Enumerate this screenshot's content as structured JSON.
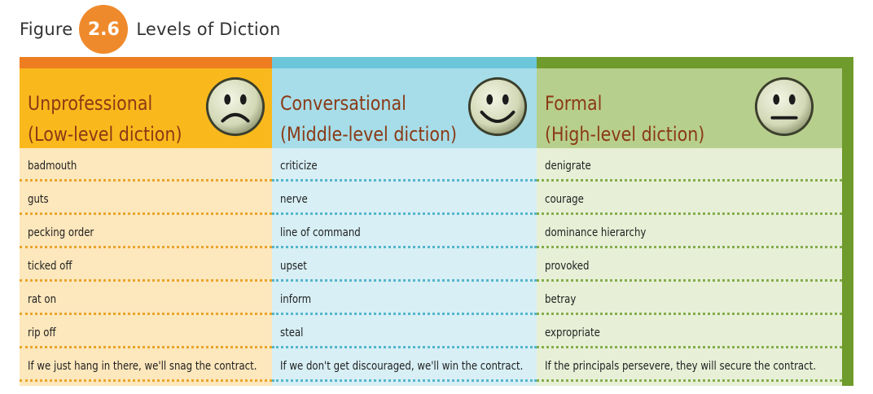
{
  "caption": {
    "figure_word": "Figure",
    "figure_number": "2.6",
    "title": "Levels of Diction"
  },
  "columns": [
    {
      "title_line1": "Unprofessional",
      "title_line2": "(Low-level diction)",
      "face_icon": "sad-face-icon",
      "mouth": "frown",
      "colors": {
        "strip": "#ee7d22",
        "header": "#f9b91c",
        "body": "#fde7bc",
        "dots": "#e9a52c"
      },
      "cells": [
        "badmouth",
        "guts",
        "pecking order",
        "ticked off",
        "rat on",
        "rip off",
        "If we just hang in there, we'll snag the contract."
      ]
    },
    {
      "title_line1": "Conversational",
      "title_line2": "(Middle-level diction)",
      "face_icon": "smiley-face-icon",
      "mouth": "smile",
      "colors": {
        "strip": "#6cc6da",
        "header": "#a6dde9",
        "body": "#d7eff5",
        "dots": "#55b6cc"
      },
      "cells": [
        "criticize",
        "nerve",
        "line of command",
        "upset",
        "inform",
        "steal",
        "If we don't get discouraged, we'll win the contract."
      ]
    },
    {
      "title_line1": "Formal",
      "title_line2": "(High-level diction)",
      "face_icon": "neutral-face-icon",
      "mouth": "neutral",
      "colors": {
        "strip": "#6f9a2c",
        "header": "#b7cf8c",
        "body": "#e7f0d7",
        "dots": "#86ad4d"
      },
      "cells": [
        "denigrate",
        "courage",
        "dominance hierarchy",
        "provoked",
        "betray",
        "expropriate",
        "If the principals persevere, they will secure the contract."
      ]
    }
  ]
}
